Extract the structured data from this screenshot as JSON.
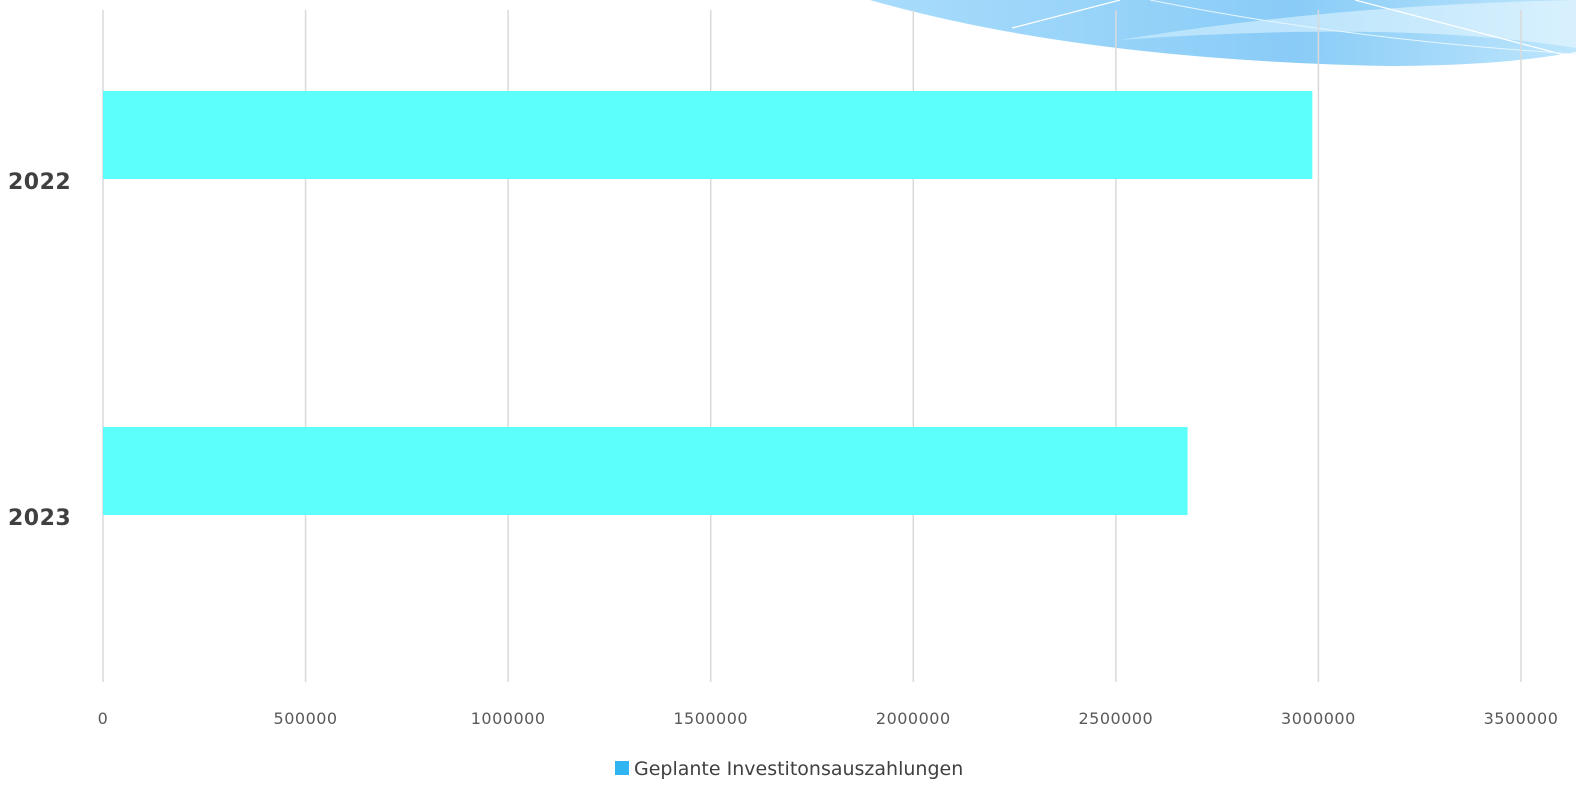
{
  "chart_data": {
    "type": "bar",
    "orientation": "horizontal",
    "categories": [
      "2022",
      "2023"
    ],
    "series": [
      {
        "name": "Geplante Investitonsauszahlungen",
        "values": [
          2985000,
          2677000
        ],
        "bar_color": "#5cfffb",
        "legend_color": "#2eb5f2"
      }
    ],
    "xlim": [
      0,
      3500000
    ],
    "x_ticks": [
      "0",
      "500000",
      "1000000",
      "1500000",
      "2000000",
      "2500000",
      "3000000",
      "3500000"
    ],
    "x_tick_values": [
      0,
      500000,
      1000000,
      1500000,
      2000000,
      2500000,
      3000000,
      3500000
    ],
    "grid": "vertical",
    "grid_color": "#d9d9d9",
    "legend_position": "bottom"
  }
}
